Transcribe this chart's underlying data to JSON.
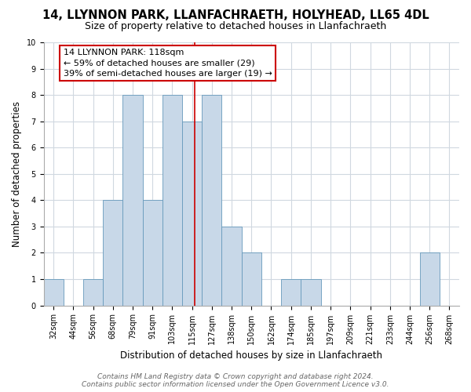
{
  "title": "14, LLYNNON PARK, LLANFACHRAETH, HOLYHEAD, LL65 4DL",
  "subtitle": "Size of property relative to detached houses in Llanfachraeth",
  "xlabel": "Distribution of detached houses by size in Llanfachraeth",
  "ylabel": "Number of detached properties",
  "bin_labels": [
    "32sqm",
    "44sqm",
    "56sqm",
    "68sqm",
    "79sqm",
    "91sqm",
    "103sqm",
    "115sqm",
    "127sqm",
    "138sqm",
    "150sqm",
    "162sqm",
    "174sqm",
    "185sqm",
    "197sqm",
    "209sqm",
    "221sqm",
    "233sqm",
    "244sqm",
    "256sqm",
    "268sqm"
  ],
  "bar_values": [
    1,
    0,
    1,
    4,
    8,
    4,
    8,
    7,
    8,
    3,
    2,
    0,
    1,
    1,
    0,
    0,
    0,
    0,
    0,
    2,
    0
  ],
  "bar_color": "#c8d8e8",
  "bar_edgecolor": "#6699bb",
  "red_line_x": 7.15,
  "annotation_text": "14 LLYNNON PARK: 118sqm\n← 59% of detached houses are smaller (29)\n39% of semi-detached houses are larger (19) →",
  "annotation_box_color": "#ffffff",
  "annotation_box_edgecolor": "#cc0000",
  "ylim": [
    0,
    10
  ],
  "yticks": [
    0,
    1,
    2,
    3,
    4,
    5,
    6,
    7,
    8,
    9,
    10
  ],
  "footer_line1": "Contains HM Land Registry data © Crown copyright and database right 2024.",
  "footer_line2": "Contains public sector information licensed under the Open Government Licence v3.0.",
  "grid_color": "#d0d8e0",
  "title_fontsize": 10.5,
  "subtitle_fontsize": 9,
  "axis_label_fontsize": 8.5,
  "tick_fontsize": 7,
  "annotation_fontsize": 8,
  "footer_fontsize": 6.5,
  "fig_width": 6.0,
  "fig_height": 5.0,
  "dpi": 100
}
